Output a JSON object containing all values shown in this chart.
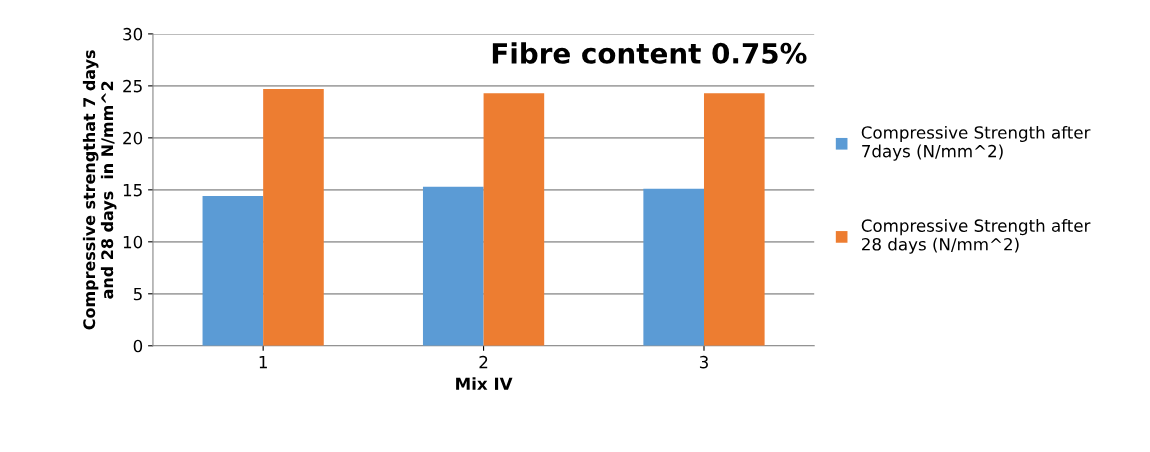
{
  "chart_data": {
    "type": "bar",
    "title": "Fibre content 0.75%",
    "xlabel": "Mix IV",
    "ylabel": "Compressive strengthat 7 days\nand 28 days  in N/mm^2",
    "categories": [
      "1",
      "2",
      "3"
    ],
    "series": [
      {
        "name": "Compressive Strength after\n7days (N/mm^2)",
        "color": "#5b9bd5",
        "values": [
          14.4,
          15.3,
          15.1
        ]
      },
      {
        "name": "Compressive Strength after\n28 days (N/mm^2)",
        "color": "#ed7d31",
        "values": [
          24.7,
          24.3,
          24.3
        ]
      }
    ],
    "ylim": [
      0,
      30
    ],
    "yticks": [
      0,
      5,
      10,
      15,
      20,
      25,
      30
    ],
    "grid": "y",
    "legend": "right"
  }
}
